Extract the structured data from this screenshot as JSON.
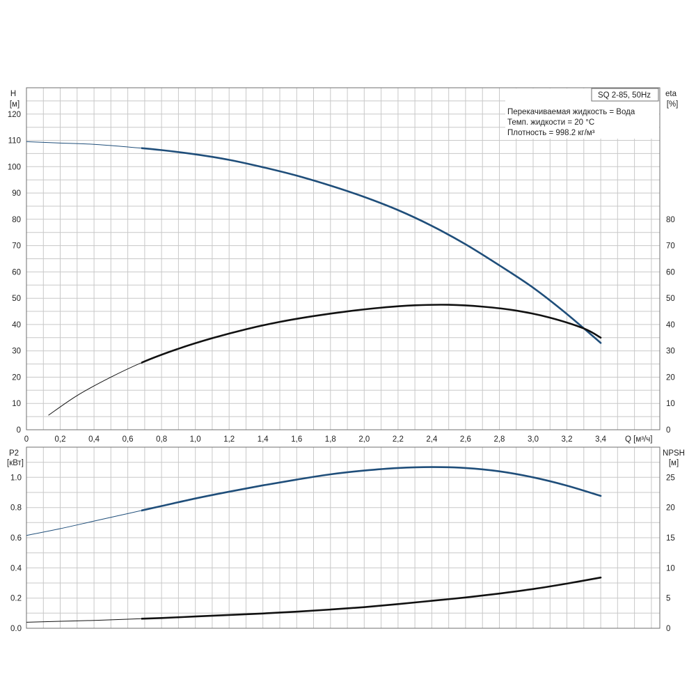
{
  "chart_data": [
    {
      "type": "line",
      "title": "SQ 2-85, 50Hz",
      "annotations": [
        "Перекачиваемая жидкость = Вода",
        "Темп. жидкости = 20 °C",
        "Плотность = 998.2 кг/м³"
      ],
      "xlabel": "Q [м³/ч]",
      "xlim": [
        0,
        3.75
      ],
      "x_ticks": [
        "0",
        "0,2",
        "0,4",
        "0,6",
        "0,8",
        "1,0",
        "1,2",
        "1,4",
        "1,6",
        "1,8",
        "2,0",
        "2,2",
        "2,4",
        "2,6",
        "2,8",
        "3,0",
        "3,2",
        "3,4"
      ],
      "y_left": {
        "label": "H",
        "unit": "[м]",
        "lim": [
          0,
          130
        ],
        "ticks": [
          "0",
          "10",
          "20",
          "30",
          "40",
          "50",
          "60",
          "70",
          "80",
          "90",
          "100",
          "110",
          "120"
        ]
      },
      "y_right": {
        "label": "eta",
        "unit": "[%]",
        "lim": [
          0,
          130
        ],
        "ticks": [
          "0",
          "10",
          "20",
          "30",
          "40",
          "50",
          "60",
          "70",
          "80"
        ]
      },
      "grid": true,
      "series": [
        {
          "axis": "left",
          "color": "#1f4e7a",
          "x": [
            0,
            0.2,
            0.4,
            0.6,
            0.8,
            1.0,
            1.2,
            1.4,
            1.6,
            1.8,
            2.0,
            2.2,
            2.4,
            2.6,
            2.8,
            3.0,
            3.2,
            3.4
          ],
          "values": [
            109.5,
            109.0,
            108.5,
            107.5,
            106.3,
            104.7,
            102.6,
            99.8,
            96.6,
            92.8,
            88.5,
            83.5,
            77.5,
            70.5,
            62.5,
            54.0,
            44.0,
            33.0
          ]
        },
        {
          "axis": "right",
          "color": "#111111",
          "x": [
            0.13,
            0.3,
            0.5,
            0.7,
            0.9,
            1.1,
            1.3,
            1.5,
            1.7,
            1.9,
            2.1,
            2.3,
            2.5,
            2.7,
            2.9,
            3.1,
            3.3,
            3.4
          ],
          "values": [
            5.5,
            13.0,
            20.0,
            26.0,
            30.8,
            34.8,
            38.2,
            41.0,
            43.2,
            45.0,
            46.4,
            47.3,
            47.5,
            46.8,
            45.3,
            42.6,
            38.5,
            35.0
          ]
        }
      ]
    },
    {
      "type": "line",
      "xlim": [
        0,
        3.75
      ],
      "y_left": {
        "label": "P2",
        "unit": "[кВт]",
        "lim": [
          0,
          1.2
        ],
        "ticks": [
          "0.0",
          "0.2",
          "0.4",
          "0.6",
          "0.8",
          "1.0"
        ]
      },
      "y_right": {
        "label": "NPSH",
        "unit": "[м]",
        "lim": [
          0,
          30
        ],
        "ticks": [
          "0",
          "5",
          "10",
          "15",
          "20",
          "25"
        ]
      },
      "grid": true,
      "series": [
        {
          "axis": "left",
          "color": "#1f4e7a",
          "x": [
            0,
            0.2,
            0.4,
            0.6,
            0.8,
            1.0,
            1.2,
            1.4,
            1.6,
            1.8,
            2.0,
            2.2,
            2.4,
            2.6,
            2.8,
            3.0,
            3.2,
            3.4
          ],
          "values": [
            0.615,
            0.66,
            0.71,
            0.76,
            0.81,
            0.86,
            0.905,
            0.947,
            0.985,
            1.02,
            1.045,
            1.062,
            1.068,
            1.062,
            1.04,
            1.0,
            0.945,
            0.877
          ]
        },
        {
          "axis": "right",
          "color": "#111111",
          "x": [
            0,
            0.2,
            0.4,
            0.6,
            0.8,
            1.0,
            1.2,
            1.4,
            1.6,
            1.8,
            2.0,
            2.2,
            2.4,
            2.6,
            2.8,
            3.0,
            3.2,
            3.4
          ],
          "values": [
            1.0,
            1.15,
            1.3,
            1.5,
            1.7,
            1.95,
            2.2,
            2.45,
            2.75,
            3.1,
            3.5,
            4.0,
            4.55,
            5.1,
            5.75,
            6.5,
            7.4,
            8.4
          ]
        }
      ]
    }
  ]
}
